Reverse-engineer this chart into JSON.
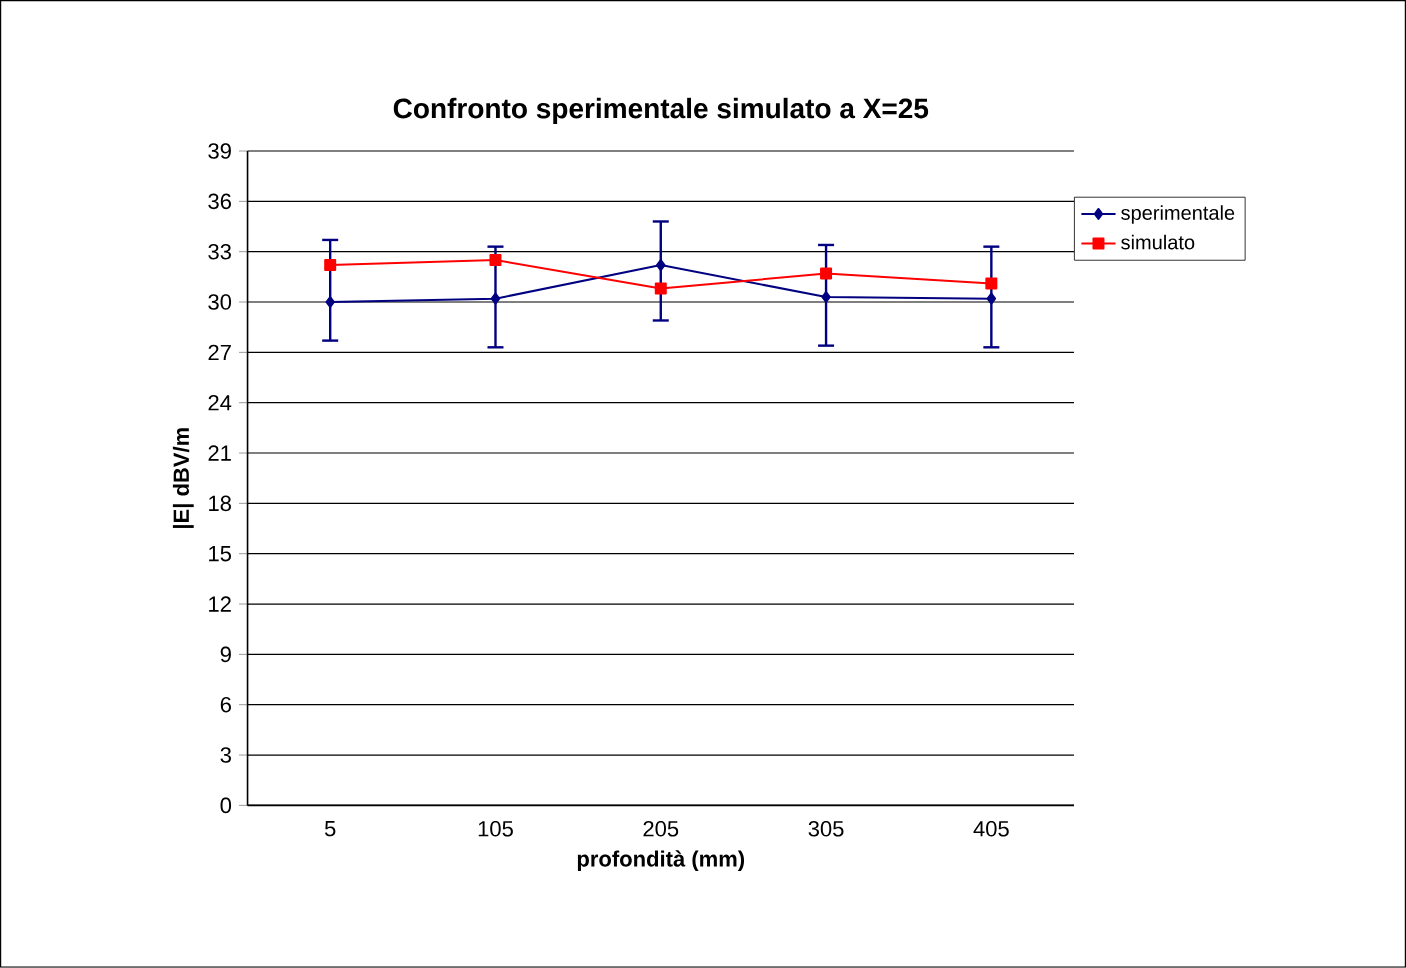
{
  "chart_data": {
    "type": "line",
    "title": "Confronto sperimentale simulato a X=25",
    "xlabel": "profondità (mm)",
    "ylabel": "|E| dBV/m",
    "categories": [
      "5",
      "105",
      "205",
      "305",
      "405"
    ],
    "series": [
      {
        "name": "sperimentale",
        "color": "#000080",
        "marker": "diamond",
        "values": [
          30.0,
          30.2,
          32.2,
          30.3,
          30.2
        ],
        "errors": [
          [
            27.7,
            33.7
          ],
          [
            27.3,
            33.3
          ],
          [
            28.9,
            34.8
          ],
          [
            27.4,
            33.4
          ],
          [
            27.3,
            33.3
          ]
        ]
      },
      {
        "name": "simulato",
        "color": "#ff0000",
        "marker": "square",
        "values": [
          32.2,
          32.5,
          30.8,
          31.7,
          31.1
        ]
      }
    ],
    "ylim": [
      0,
      39
    ],
    "yticks": [
      0,
      3,
      6,
      9,
      12,
      15,
      18,
      21,
      24,
      27,
      30,
      33,
      36,
      39
    ],
    "grid": "y",
    "legend": "top right",
    "line_style": "solid"
  }
}
